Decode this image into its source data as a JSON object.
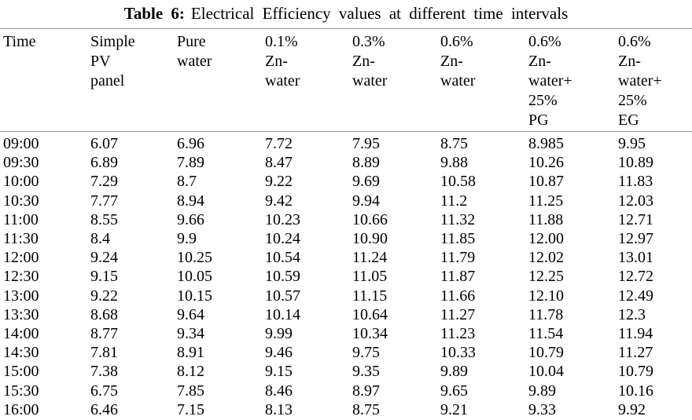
{
  "caption": {
    "label": "Table 6:",
    "text": "Electrical Efficiency values at different time intervals"
  },
  "colors": {
    "text": "#000000",
    "rule": "#999999",
    "background": "#ffffff"
  },
  "table": {
    "columns": [
      {
        "name": "time",
        "lines": [
          "Time"
        ]
      },
      {
        "name": "simple-pv-panel",
        "lines": [
          "Simple",
          "PV",
          "panel"
        ]
      },
      {
        "name": "pure-water",
        "lines": [
          "Pure",
          "water"
        ]
      },
      {
        "name": "zn-water-0-1",
        "lines": [
          "0.1%",
          "Zn-",
          "water"
        ]
      },
      {
        "name": "zn-water-0-3",
        "lines": [
          "0.3%",
          "Zn-",
          "water"
        ]
      },
      {
        "name": "zn-water-0-6",
        "lines": [
          "0.6%",
          "Zn-",
          "water"
        ]
      },
      {
        "name": "zn-water-0-6-pg",
        "lines": [
          "0.6%",
          "Zn-",
          "water+",
          "25%",
          "PG"
        ]
      },
      {
        "name": "zn-water-0-6-eg",
        "lines": [
          "0.6%",
          "Zn-",
          "water+",
          "25%",
          "EG"
        ]
      }
    ],
    "rows": [
      [
        "09:00",
        "6.07",
        "6.96",
        "7.72",
        "7.95",
        "8.75",
        "8.985",
        "9.95"
      ],
      [
        "09:30",
        "6.89",
        "7.89",
        "8.47",
        "8.89",
        "9.88",
        "10.26",
        "10.89"
      ],
      [
        "10:00",
        "7.29",
        "8.7",
        "9.22",
        "9.69",
        "10.58",
        "10.87",
        "11.83"
      ],
      [
        "10:30",
        "7.77",
        "8.94",
        "9.42",
        "9.94",
        "11.2",
        "11.25",
        "12.03"
      ],
      [
        "11:00",
        "8.55",
        "9.66",
        "10.23",
        "10.66",
        "11.32",
        "11.88",
        "12.71"
      ],
      [
        "11:30",
        "8.4",
        "9.9",
        "10.24",
        "10.90",
        "11.85",
        "12.00",
        "12.97"
      ],
      [
        "12:00",
        "9.24",
        "10.25",
        "10.54",
        "11.24",
        "11.79",
        "12.02",
        "13.01"
      ],
      [
        "12:30",
        "9.15",
        "10.05",
        "10.59",
        "11.05",
        "11.87",
        "12.25",
        "12.72"
      ],
      [
        "13:00",
        "9.22",
        "10.15",
        "10.57",
        "11.15",
        "11.66",
        "12.10",
        "12.49"
      ],
      [
        "13:30",
        "8.68",
        "9.64",
        "10.14",
        "10.64",
        "11.27",
        "11.78",
        "12.3"
      ],
      [
        "14:00",
        "8.77",
        "9.34",
        "9.99",
        "10.34",
        "11.23",
        "11.54",
        "11.94"
      ],
      [
        "14:30",
        "7.81",
        "8.91",
        "9.46",
        "9.75",
        "10.33",
        "10.79",
        "11.27"
      ],
      [
        "15:00",
        "7.38",
        "8.12",
        "9.15",
        "9.35",
        "9.89",
        "10.04",
        "10.79"
      ],
      [
        "15:30",
        "6.75",
        "7.85",
        "8.46",
        "8.97",
        "9.65",
        "9.89",
        "10.16"
      ],
      [
        "16:00",
        "6.46",
        "7.15",
        "8.13",
        "8.75",
        "9.21",
        "9.33",
        "9.92"
      ]
    ]
  }
}
